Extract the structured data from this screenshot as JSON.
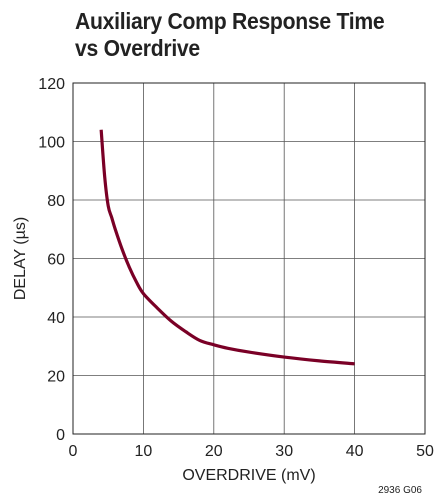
{
  "chart_data": {
    "type": "line",
    "title": "Auxiliary Comp Response Time vs Overdrive",
    "xlabel": "OVERDRIVE (mV)",
    "ylabel": "DELAY (µs)",
    "xlim": [
      0,
      50
    ],
    "ylim": [
      0,
      120
    ],
    "xticks": [
      "0",
      "10",
      "20",
      "30",
      "40",
      "50"
    ],
    "yticks": [
      "0",
      "20",
      "40",
      "60",
      "80",
      "100",
      "120"
    ],
    "grid": true,
    "series": [
      {
        "color": "#7a0026",
        "x": [
          4,
          4.5,
          5,
          5.5,
          6,
          7,
          8,
          9,
          10,
          12,
          14,
          16,
          18,
          20,
          22,
          25,
          30,
          35,
          40
        ],
        "y": [
          104,
          88,
          78,
          74,
          70,
          63,
          57,
          52,
          48,
          43,
          38.5,
          35,
          32,
          30.5,
          29.3,
          28,
          26.3,
          25,
          24
        ]
      }
    ]
  },
  "figure_code": "2936 G06"
}
